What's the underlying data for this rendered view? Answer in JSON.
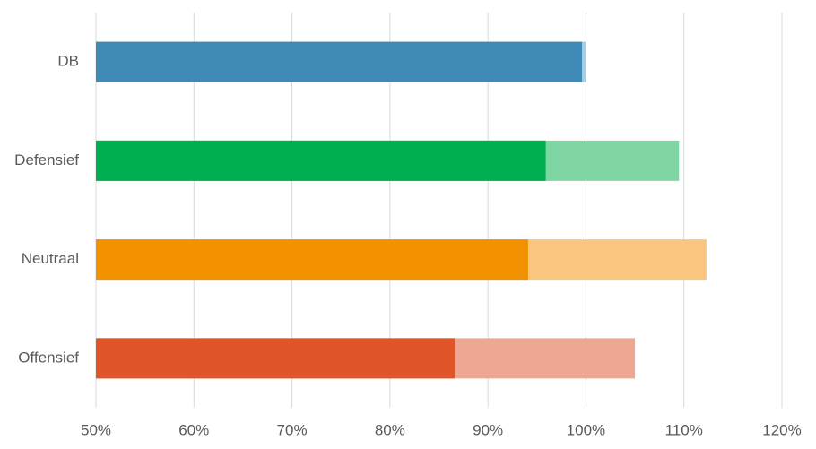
{
  "chart_data": {
    "type": "bar",
    "orientation": "horizontal",
    "categories": [
      "DB",
      "Defensief",
      "Neutraal",
      "Offensief"
    ],
    "series": [
      {
        "colors": [
          "#3f89b6",
          "#00b050",
          "#f39200",
          "#e05527"
        ],
        "values": [
          99.6,
          95.9,
          94.1,
          86.6
        ]
      },
      {
        "colors": [
          "#a8cde0",
          "#7fd6a3",
          "#f9c680",
          "#eea793"
        ],
        "values": [
          100.0,
          109.5,
          112.3,
          105.0
        ]
      }
    ],
    "xlim": [
      50,
      120
    ],
    "xticks": [
      {
        "value": 50,
        "label": "50%"
      },
      {
        "value": 60,
        "label": "60%"
      },
      {
        "value": 70,
        "label": "70%"
      },
      {
        "value": 80,
        "label": "80%"
      },
      {
        "value": 90,
        "label": "90%"
      },
      {
        "value": 100,
        "label": "100%"
      },
      {
        "value": 110,
        "label": "110%"
      },
      {
        "value": 120,
        "label": "120%"
      }
    ],
    "grid": true
  }
}
